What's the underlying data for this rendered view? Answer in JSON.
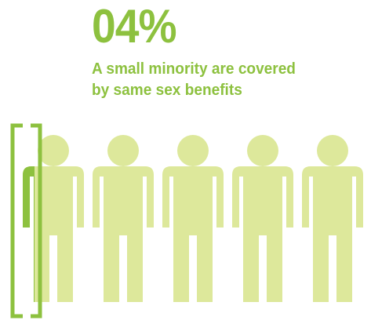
{
  "stat": {
    "value": "04%",
    "caption_line1": "A small minority are covered",
    "caption_line2": "by same sex benefits"
  },
  "pictogram": {
    "figure_count": 5,
    "highlighted_share": 0.04,
    "icon": "person-icon",
    "highlight_marker": "bracket-icon"
  },
  "colors": {
    "accent": "#8dc13f",
    "figure_fill": "#dde89b",
    "highlight_fill": "#8dc13f"
  }
}
